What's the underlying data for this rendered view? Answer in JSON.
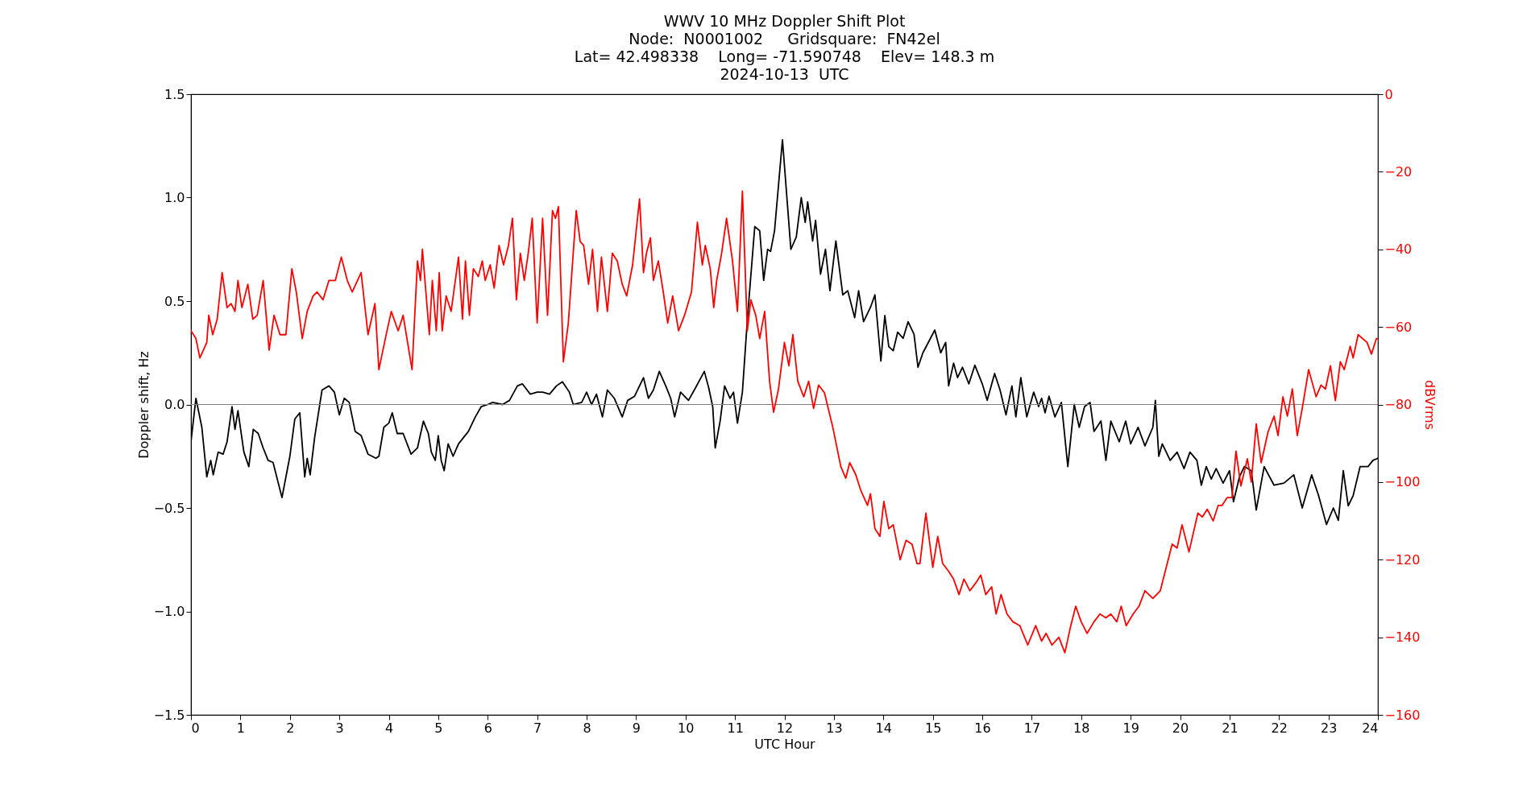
{
  "chart_data": {
    "type": "line",
    "title": "WWV 10 MHz Doppler Shift Plot",
    "subtitle": [
      "Node:  N0001002     Gridsquare:  FN42el",
      "Lat= 42.498338    Long= -71.590748    Elev= 148.3 m",
      "2024-10-13  UTC"
    ],
    "xlabel": "UTC Hour",
    "ylabel": "Doppler shift, Hz",
    "y2label": "dBVrms",
    "xlim": [
      0,
      24
    ],
    "xticks": [
      0,
      1,
      2,
      3,
      4,
      5,
      6,
      7,
      8,
      9,
      10,
      11,
      12,
      13,
      14,
      15,
      16,
      17,
      18,
      19,
      20,
      21,
      22,
      23,
      24
    ],
    "ylim": [
      -1.5,
      1.5
    ],
    "yticks": [
      {
        "value": -1.5,
        "label": "−1.5"
      },
      {
        "value": -1,
        "label": "−1.0"
      },
      {
        "value": -0.5,
        "label": "−0.5"
      },
      {
        "value": 0,
        "label": "0.0"
      },
      0.5,
      {
        "value": 1,
        "label": "1.0"
      },
      1.5
    ],
    "y2lim": [
      -160,
      0
    ],
    "y2ticks": [
      {
        "value": -160,
        "label": "−160"
      },
      {
        "value": -140,
        "label": "−140"
      },
      {
        "value": -120,
        "label": "−120"
      },
      {
        "value": -100,
        "label": "−100"
      },
      {
        "value": -80,
        "label": "−80"
      },
      {
        "value": -60,
        "label": "−60"
      },
      {
        "value": -40,
        "label": "−40"
      },
      {
        "value": -20,
        "label": "−20"
      },
      0
    ],
    "ref_lines": [
      {
        "axis": "y",
        "value": 0,
        "label": null,
        "color": "#808080"
      }
    ],
    "grid": false,
    "line_style": "solid",
    "series": [
      {
        "color": "#000000",
        "x": [
          0,
          0.1,
          0.22,
          0.32,
          0.4,
          0.45,
          0.55,
          0.65,
          0.73,
          0.83,
          0.89,
          0.95,
          1.07,
          1.17,
          1.26,
          1.36,
          1.46,
          1.56,
          1.66,
          1.84,
          2.0,
          2.1,
          2.2,
          2.3,
          2.35,
          2.41,
          2.5,
          2.65,
          2.79,
          2.9,
          3.0,
          3.1,
          3.2,
          3.32,
          3.44,
          3.58,
          3.74,
          3.8,
          3.9,
          4.0,
          4.07,
          4.17,
          4.29,
          4.45,
          4.58,
          4.7,
          4.8,
          4.86,
          4.94,
          5.0,
          5.06,
          5.12,
          5.2,
          5.3,
          5.41,
          5.61,
          5.75,
          5.87,
          6.0,
          6.1,
          6.3,
          6.44,
          6.6,
          6.7,
          6.86,
          7.0,
          7.11,
          7.25,
          7.39,
          7.51,
          7.65,
          7.73,
          7.9,
          8.0,
          8.1,
          8.2,
          8.32,
          8.42,
          8.56,
          8.72,
          8.83,
          8.97,
          9.15,
          9.25,
          9.35,
          9.47,
          9.6,
          9.7,
          9.78,
          9.9,
          10.06,
          10.2,
          10.38,
          10.47,
          10.55,
          10.6,
          10.7,
          10.79,
          10.9,
          10.97,
          11.05,
          11.15,
          11.25,
          11.4,
          11.5,
          11.58,
          11.66,
          11.72,
          11.8,
          11.96,
          12.13,
          12.24,
          12.34,
          12.42,
          12.47,
          12.57,
          12.63,
          12.73,
          12.83,
          12.92,
          13.04,
          13.18,
          13.28,
          13.42,
          13.5,
          13.6,
          13.74,
          13.83,
          13.95,
          14.03,
          14.11,
          14.2,
          14.29,
          14.4,
          14.5,
          14.62,
          14.7,
          14.8,
          15.04,
          15.16,
          15.26,
          15.32,
          15.42,
          15.5,
          15.6,
          15.73,
          15.85,
          16.0,
          16.1,
          16.25,
          16.36,
          16.48,
          16.6,
          16.68,
          16.78,
          16.9,
          17.04,
          17.14,
          17.2,
          17.27,
          17.35,
          17.47,
          17.6,
          17.73,
          17.86,
          17.96,
          18.07,
          18.18,
          18.26,
          18.4,
          18.5,
          18.6,
          18.77,
          18.9,
          19.0,
          19.15,
          19.29,
          19.45,
          19.5,
          19.57,
          19.64,
          19.8,
          19.94,
          20.08,
          20.2,
          20.34,
          20.43,
          20.53,
          20.63,
          20.73,
          20.87,
          21.0,
          21.08,
          21.2,
          21.3,
          21.44,
          21.54,
          21.7,
          21.9,
          22.1,
          22.3,
          22.47,
          22.66,
          22.8,
          22.96,
          23.1,
          23.2,
          23.3,
          23.4,
          23.5,
          23.64,
          23.8,
          23.9,
          24.0
        ],
        "values": [
          -0.18,
          0.03,
          -0.11,
          -0.35,
          -0.27,
          -0.34,
          -0.23,
          -0.24,
          -0.18,
          -0.01,
          -0.12,
          -0.03,
          -0.23,
          -0.3,
          -0.12,
          -0.14,
          -0.21,
          -0.27,
          -0.28,
          -0.45,
          -0.25,
          -0.07,
          -0.04,
          -0.35,
          -0.26,
          -0.34,
          -0.16,
          0.07,
          0.09,
          0.06,
          -0.05,
          0.03,
          0.01,
          -0.13,
          -0.15,
          -0.24,
          -0.26,
          -0.25,
          -0.11,
          -0.09,
          -0.04,
          -0.14,
          -0.14,
          -0.24,
          -0.21,
          -0.08,
          -0.14,
          -0.23,
          -0.27,
          -0.15,
          -0.27,
          -0.32,
          -0.19,
          -0.25,
          -0.19,
          -0.13,
          -0.06,
          -0.01,
          0.0,
          0.01,
          0.0,
          0.02,
          0.09,
          0.1,
          0.05,
          0.06,
          0.06,
          0.05,
          0.09,
          0.11,
          0.06,
          0.0,
          0.01,
          0.06,
          0.0,
          0.05,
          -0.06,
          0.07,
          0.03,
          -0.06,
          0.02,
          0.04,
          0.13,
          0.03,
          0.07,
          0.16,
          0.09,
          0.03,
          -0.06,
          0.06,
          0.02,
          0.08,
          0.16,
          0.08,
          -0.01,
          -0.21,
          -0.08,
          0.09,
          0.03,
          0.06,
          -0.09,
          0.06,
          0.41,
          0.86,
          0.84,
          0.6,
          0.75,
          0.74,
          0.84,
          1.28,
          0.75,
          0.81,
          1.0,
          0.88,
          0.98,
          0.79,
          0.89,
          0.63,
          0.75,
          0.55,
          0.79,
          0.53,
          0.55,
          0.42,
          0.55,
          0.4,
          0.47,
          0.53,
          0.21,
          0.43,
          0.28,
          0.26,
          0.35,
          0.32,
          0.4,
          0.34,
          0.18,
          0.25,
          0.36,
          0.25,
          0.3,
          0.09,
          0.2,
          0.13,
          0.18,
          0.1,
          0.19,
          0.1,
          0.02,
          0.15,
          0.07,
          -0.05,
          0.09,
          -0.06,
          0.13,
          -0.06,
          0.06,
          -0.01,
          0.03,
          -0.04,
          0.04,
          -0.06,
          0.01,
          -0.3,
          0.0,
          -0.11,
          -0.01,
          0.01,
          -0.13,
          -0.08,
          -0.27,
          -0.08,
          -0.18,
          -0.08,
          -0.19,
          -0.11,
          -0.2,
          -0.11,
          0.02,
          -0.25,
          -0.19,
          -0.27,
          -0.23,
          -0.31,
          -0.23,
          -0.27,
          -0.39,
          -0.3,
          -0.36,
          -0.31,
          -0.38,
          -0.32,
          -0.47,
          -0.35,
          -0.3,
          -0.32,
          -0.51,
          -0.3,
          -0.39,
          -0.38,
          -0.34,
          -0.5,
          -0.34,
          -0.44,
          -0.58,
          -0.5,
          -0.56,
          -0.32,
          -0.49,
          -0.44,
          -0.3,
          -0.3,
          -0.27,
          -0.26
        ]
      },
      {
        "color": "#ff0000",
        "axis": "y2",
        "x": [
          0,
          0.1,
          0.18,
          0.32,
          0.36,
          0.44,
          0.53,
          0.63,
          0.73,
          0.81,
          0.89,
          0.95,
          1.03,
          1.15,
          1.25,
          1.34,
          1.46,
          1.58,
          1.68,
          1.8,
          1.92,
          2.04,
          2.13,
          2.25,
          2.35,
          2.47,
          2.55,
          2.67,
          2.79,
          2.92,
          3.04,
          3.16,
          3.26,
          3.44,
          3.58,
          3.72,
          3.8,
          3.93,
          4.05,
          4.19,
          4.29,
          4.47,
          4.58,
          4.64,
          4.68,
          4.82,
          4.88,
          4.96,
          5.02,
          5.08,
          5.16,
          5.26,
          5.41,
          5.49,
          5.55,
          5.63,
          5.71,
          5.81,
          5.89,
          5.95,
          6.05,
          6.13,
          6.23,
          6.32,
          6.42,
          6.5,
          6.58,
          6.66,
          6.74,
          6.82,
          6.9,
          7.0,
          7.11,
          7.21,
          7.31,
          7.37,
          7.43,
          7.53,
          7.63,
          7.79,
          7.87,
          7.94,
          8.04,
          8.12,
          8.22,
          8.3,
          8.42,
          8.52,
          8.62,
          8.72,
          8.81,
          8.93,
          9.07,
          9.15,
          9.21,
          9.29,
          9.35,
          9.45,
          9.55,
          9.64,
          9.74,
          9.86,
          9.98,
          10.12,
          10.24,
          10.34,
          10.4,
          10.5,
          10.57,
          10.63,
          10.73,
          10.83,
          10.95,
          11.05,
          11.15,
          11.25,
          11.32,
          11.42,
          11.5,
          11.6,
          11.7,
          11.78,
          11.88,
          12.0,
          12.09,
          12.17,
          12.27,
          12.39,
          12.49,
          12.59,
          12.69,
          12.81,
          12.98,
          13.14,
          13.24,
          13.32,
          13.44,
          13.54,
          13.68,
          13.74,
          13.83,
          13.93,
          14.01,
          14.11,
          14.2,
          14.34,
          14.46,
          14.58,
          14.68,
          14.74,
          14.86,
          15.0,
          15.1,
          15.2,
          15.32,
          15.42,
          15.53,
          15.63,
          15.75,
          15.87,
          15.97,
          16.07,
          16.19,
          16.28,
          16.38,
          16.5,
          16.62,
          16.76,
          16.92,
          17.08,
          17.2,
          17.29,
          17.41,
          17.55,
          17.67,
          17.79,
          17.89,
          18.0,
          18.12,
          18.26,
          18.38,
          18.5,
          18.6,
          18.72,
          18.81,
          18.91,
          19.05,
          19.17,
          19.29,
          19.45,
          19.6,
          19.74,
          19.84,
          19.94,
          20.04,
          20.18,
          20.36,
          20.45,
          20.55,
          20.67,
          20.77,
          20.85,
          20.95,
          21.05,
          21.13,
          21.23,
          21.36,
          21.44,
          21.54,
          21.64,
          21.78,
          21.9,
          21.98,
          22.08,
          22.17,
          22.27,
          22.37,
          22.47,
          22.6,
          22.75,
          22.85,
          22.94,
          23.04,
          23.14,
          23.24,
          23.32,
          23.44,
          23.5,
          23.6,
          23.78,
          23.87,
          23.97,
          24
        ],
        "values": [
          -61,
          -63,
          -68,
          -64,
          -57,
          -62,
          -58,
          -46,
          -55,
          -54,
          -56,
          -48,
          -55,
          -49,
          -58,
          -57,
          -48,
          -66,
          -57,
          -62,
          -62,
          -45,
          -51,
          -63,
          -56,
          -52,
          -51,
          -53,
          -48,
          -48,
          -42,
          -48,
          -51,
          -46,
          -62,
          -54,
          -71,
          -63,
          -56,
          -61,
          -57,
          -71,
          -43,
          -48,
          -40,
          -62,
          -48,
          -61,
          -46,
          -61,
          -52,
          -56,
          -42,
          -58,
          -43,
          -57,
          -45,
          -47,
          -43,
          -48,
          -44,
          -50,
          -39,
          -44,
          -39,
          -32,
          -53,
          -41,
          -48,
          -41,
          -32,
          -59,
          -32,
          -57,
          -30,
          -32,
          -29,
          -69,
          -59,
          -30,
          -38,
          -39,
          -49,
          -40,
          -56,
          -42,
          -56,
          -41,
          -43,
          -49,
          -52,
          -44,
          -27,
          -46,
          -41,
          -37,
          -48,
          -43,
          -51,
          -59,
          -52,
          -61,
          -57,
          -51,
          -33,
          -44,
          -39,
          -45,
          -55,
          -48,
          -41,
          -32,
          -43,
          -56,
          -25,
          -61,
          -53,
          -57,
          -63,
          -56,
          -74,
          -82,
          -76,
          -64,
          -70,
          -62,
          -74,
          -78,
          -74,
          -81,
          -75,
          -77,
          -86,
          -96,
          -99,
          -95,
          -98,
          -102,
          -106,
          -103,
          -112,
          -114,
          -105,
          -112,
          -111,
          -120,
          -115,
          -116,
          -121,
          -121,
          -108,
          -122,
          -114,
          -121,
          -123,
          -125,
          -129,
          -125,
          -128,
          -126,
          -124,
          -129,
          -127,
          -134,
          -129,
          -134,
          -136,
          -137,
          -142,
          -137,
          -141,
          -139,
          -142,
          -140,
          -144,
          -137,
          -132,
          -136,
          -139,
          -136,
          -134,
          -135,
          -134,
          -136,
          -132,
          -137,
          -134,
          -132,
          -128,
          -130,
          -128,
          -121,
          -116,
          -117,
          -111,
          -118,
          -108,
          -109,
          -107,
          -110,
          -106,
          -106,
          -104,
          -104,
          -92,
          -101,
          -94,
          -100,
          -85,
          -95,
          -87,
          -83,
          -88,
          -78,
          -83,
          -76,
          -88,
          -81,
          -71,
          -78,
          -75,
          -76,
          -70,
          -79,
          -69,
          -71,
          -65,
          -68,
          -62,
          -64,
          -67,
          -63,
          -63
        ]
      }
    ]
  }
}
